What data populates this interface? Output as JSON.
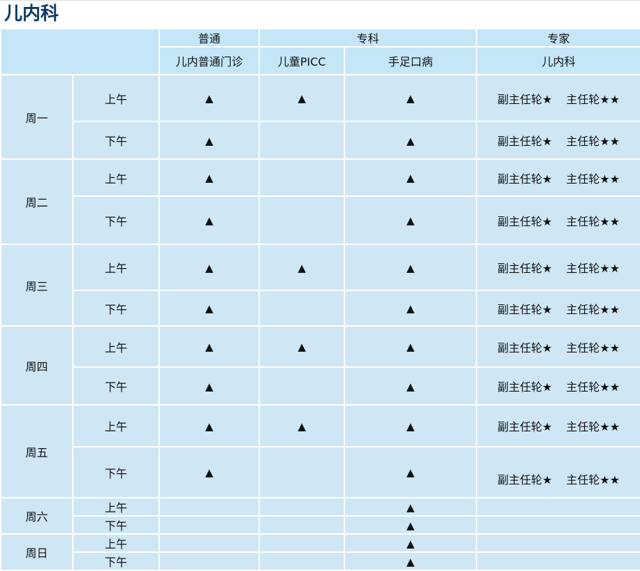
{
  "title": "儿内科",
  "header": {
    "groups": [
      "普通",
      "专科",
      "专家"
    ],
    "columns": [
      "儿内普通门诊",
      "儿童PICC",
      "手足口病",
      "儿内科"
    ]
  },
  "symbols": {
    "available": "▲"
  },
  "expert_labels": {
    "deputy": "副主任轮★",
    "chief": "主任轮★★"
  },
  "colors": {
    "title": "#0e3a66",
    "header_bg": "#c4e6f7",
    "body_bg": "#cfe6f4"
  },
  "schedule": [
    {
      "day": "周一",
      "slots": [
        {
          "period": "上午",
          "general": true,
          "picc": true,
          "hfm": true,
          "expert": true
        },
        {
          "period": "下午",
          "general": true,
          "picc": false,
          "hfm": true,
          "expert": true
        }
      ]
    },
    {
      "day": "周二",
      "slots": [
        {
          "period": "上午",
          "general": true,
          "picc": false,
          "hfm": true,
          "expert": true
        },
        {
          "period": "下午",
          "general": true,
          "picc": false,
          "hfm": true,
          "expert": true
        }
      ]
    },
    {
      "day": "周三",
      "slots": [
        {
          "period": "上午",
          "general": true,
          "picc": true,
          "hfm": true,
          "expert": true
        },
        {
          "period": "下午",
          "general": true,
          "picc": false,
          "hfm": true,
          "expert": true
        }
      ]
    },
    {
      "day": "周四",
      "slots": [
        {
          "period": "上午",
          "general": true,
          "picc": true,
          "hfm": true,
          "expert": true
        },
        {
          "period": "下午",
          "general": true,
          "picc": false,
          "hfm": true,
          "expert": true
        }
      ]
    },
    {
      "day": "周五",
      "slots": [
        {
          "period": "上午",
          "general": true,
          "picc": true,
          "hfm": true,
          "expert": true
        },
        {
          "period": "下午",
          "general": true,
          "picc": false,
          "hfm": true,
          "expert": true
        }
      ]
    },
    {
      "day": "周六",
      "slots": [
        {
          "period": "上午",
          "general": false,
          "picc": false,
          "hfm": true,
          "expert": false
        },
        {
          "period": "下午",
          "general": false,
          "picc": false,
          "hfm": true,
          "expert": false
        }
      ]
    },
    {
      "day": "周日",
      "slots": [
        {
          "period": "上午",
          "general": false,
          "picc": false,
          "hfm": true,
          "expert": false
        },
        {
          "period": "下午",
          "general": false,
          "picc": false,
          "hfm": true,
          "expert": false
        }
      ]
    }
  ]
}
